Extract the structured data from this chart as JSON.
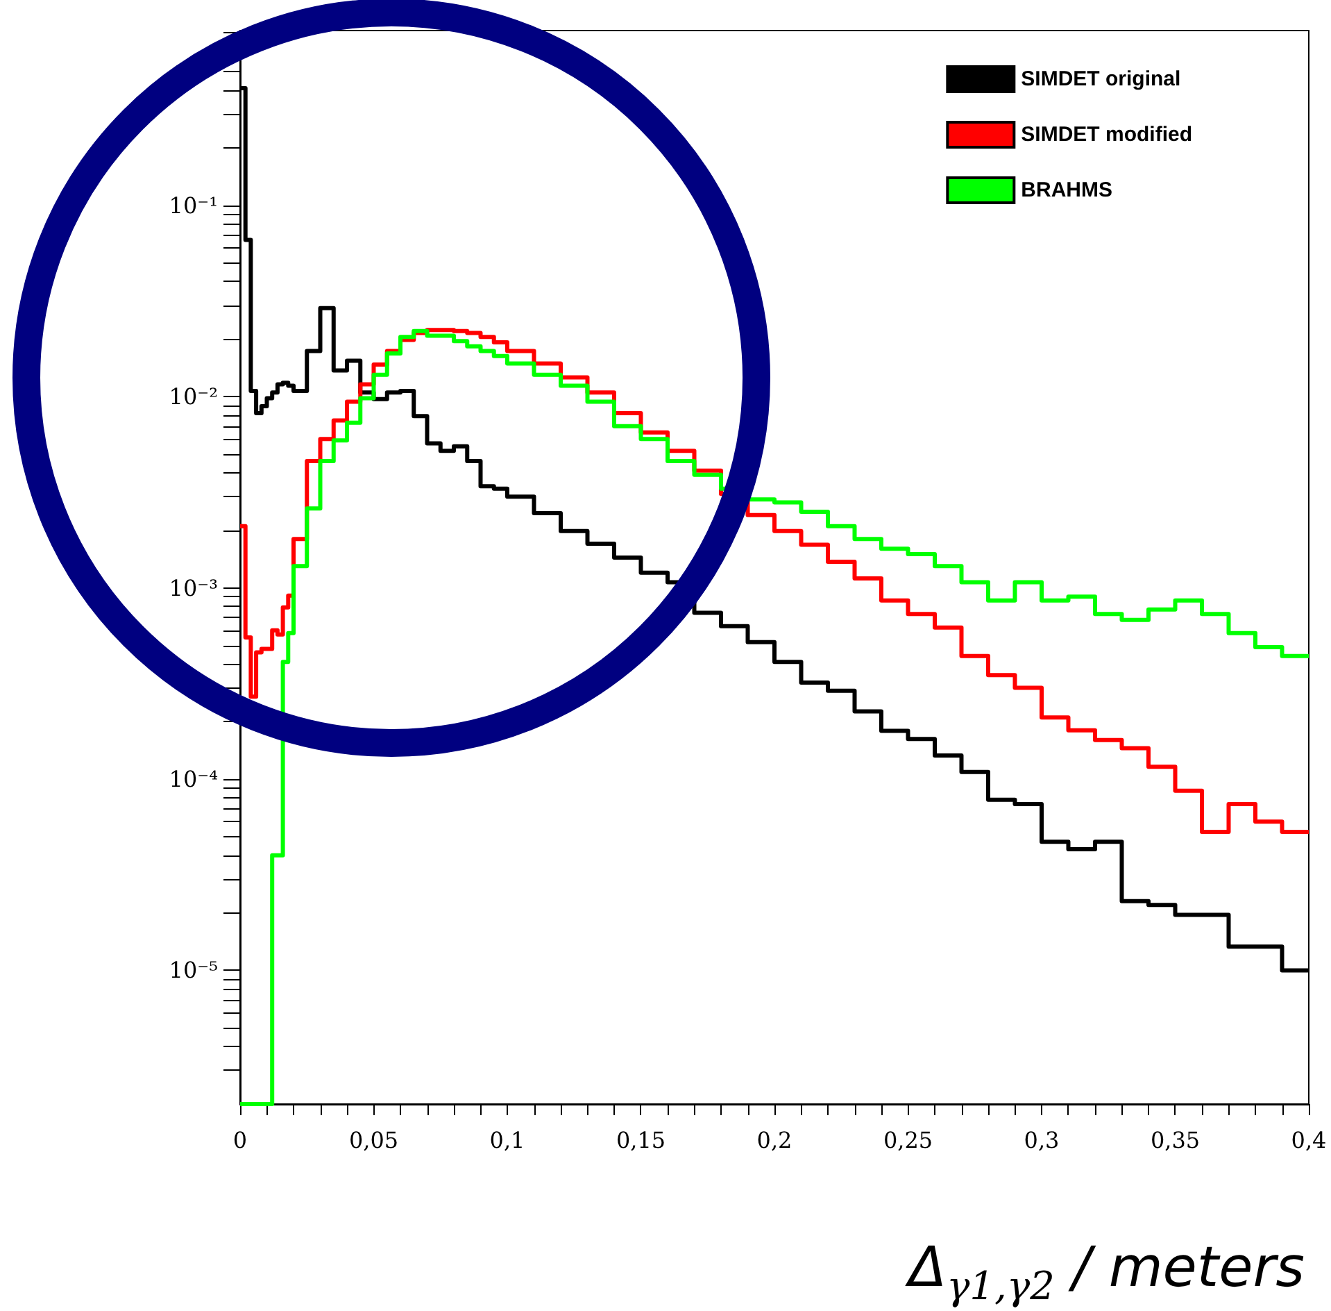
{
  "chart_data": {
    "type": "histogram",
    "xlabel": "Δ$_{γ1,γ2}$ / meters",
    "bins": [
      0,
      0.002,
      0.004,
      0.006,
      0.008,
      0.01,
      0.012,
      0.014,
      0.016,
      0.018,
      0.02,
      0.025,
      0.03,
      0.035,
      0.04,
      0.045,
      0.05,
      0.055,
      0.06,
      0.065,
      0.07,
      0.075,
      0.08,
      0.085,
      0.09,
      0.095,
      0.1,
      0.11,
      0.12,
      0.13,
      0.14,
      0.15,
      0.16,
      0.17,
      0.18,
      0.19,
      0.2,
      0.21,
      0.22,
      0.23,
      0.24,
      0.25,
      0.26,
      0.27,
      0.28,
      0.29,
      0.3,
      0.31,
      0.32,
      0.33,
      0.34,
      0.35,
      0.36,
      0.37,
      0.38,
      0.39,
      0.4
    ],
    "series": [
      {
        "name": "SIMDET original",
        "color": "#000000",
        "values": [
          0.41,
          0.066,
          0.0107,
          0.0082,
          0.0089,
          0.0098,
          0.0105,
          0.0116,
          0.0118,
          0.0114,
          0.0107,
          0.0173,
          0.029,
          0.0137,
          0.0154,
          0.0105,
          0.0097,
          0.0105,
          0.0107,
          0.0079,
          0.0057,
          0.0052,
          0.0055,
          0.0046,
          0.0034,
          0.0033,
          0.003,
          0.00246,
          0.00198,
          0.0017,
          0.00144,
          0.0012,
          0.00107,
          0.00074,
          0.00063,
          0.00052,
          0.00041,
          0.00032,
          0.00029,
          0.000226,
          0.000179,
          0.000162,
          0.000133,
          0.000109,
          7.8e-05,
          7.4e-05,
          4.7e-05,
          4.3e-05,
          4.7e-05,
          2.3e-05,
          2.2e-05,
          1.95e-05,
          1.95e-05,
          1.33e-05,
          1.33e-05,
          1e-05
        ]
      },
      {
        "name": "SIMDET modified",
        "color": "#ff0000",
        "values": [
          0.0021,
          0.00055,
          0.00027,
          0.00046,
          0.00048,
          0.00048,
          0.0006,
          0.00057,
          0.00079,
          0.00091,
          0.0018,
          0.0046,
          0.006,
          0.0075,
          0.0094,
          0.0116,
          0.0147,
          0.0173,
          0.0198,
          0.0215,
          0.0223,
          0.0223,
          0.022,
          0.0215,
          0.0205,
          0.0192,
          0.0173,
          0.0149,
          0.0126,
          0.0105,
          0.0082,
          0.0065,
          0.0052,
          0.0041,
          0.0031,
          0.0024,
          0.00198,
          0.00168,
          0.00137,
          0.00112,
          0.00086,
          0.00073,
          0.00062,
          0.00044,
          0.00035,
          0.0003,
          0.00021,
          0.00018,
          0.00016,
          0.000145,
          0.000116,
          8.7e-05,
          5.3e-05,
          7.4e-05,
          6e-05,
          5.3e-05
        ]
      },
      {
        "name": "BRAHMS",
        "color": "#00ff00",
        "values": [
          null,
          null,
          null,
          null,
          null,
          null,
          4e-05,
          4e-05,
          0.00041,
          0.00058,
          0.0013,
          0.0026,
          0.0046,
          0.0059,
          0.0073,
          0.0098,
          0.013,
          0.0168,
          0.0205,
          0.022,
          0.0208,
          0.0208,
          0.0195,
          0.0183,
          0.0173,
          0.0163,
          0.0149,
          0.013,
          0.0114,
          0.0094,
          0.007,
          0.006,
          0.0046,
          0.0039,
          0.0033,
          0.0029,
          0.0028,
          0.0025,
          0.0021,
          0.0018,
          0.0016,
          0.0015,
          0.0013,
          0.00107,
          0.00086,
          0.00107,
          0.00086,
          0.0009,
          0.00073,
          0.00068,
          0.00077,
          0.00086,
          0.00073,
          0.00058,
          0.00049,
          0.00044
        ]
      }
    ],
    "log": "y",
    "xlim": [
      0,
      0.4
    ],
    "xticks": [
      0,
      {
        "value": 0.01,
        "label": null
      },
      {
        "value": 0.02,
        "label": null
      },
      {
        "value": 0.03,
        "label": null
      },
      {
        "value": 0.04,
        "label": null
      },
      {
        "value": 0.05,
        "label": "0,05"
      },
      {
        "value": 0.06,
        "label": null
      },
      {
        "value": 0.07,
        "label": null
      },
      {
        "value": 0.08,
        "label": null
      },
      {
        "value": 0.09,
        "label": null
      },
      {
        "value": 0.1,
        "label": "0,1"
      },
      {
        "value": 0.11,
        "label": null
      },
      {
        "value": 0.12,
        "label": null
      },
      {
        "value": 0.13,
        "label": null
      },
      {
        "value": 0.14,
        "label": null
      },
      {
        "value": 0.15,
        "label": "0,15"
      },
      {
        "value": 0.16,
        "label": null
      },
      {
        "value": 0.17,
        "label": null
      },
      {
        "value": 0.18,
        "label": null
      },
      {
        "value": 0.19,
        "label": null
      },
      {
        "value": 0.2,
        "label": "0,2"
      },
      {
        "value": 0.21,
        "label": null
      },
      {
        "value": 0.22,
        "label": null
      },
      {
        "value": 0.23,
        "label": null
      },
      {
        "value": 0.24,
        "label": null
      },
      {
        "value": 0.25,
        "label": "0,25"
      },
      {
        "value": 0.26,
        "label": null
      },
      {
        "value": 0.27,
        "label": null
      },
      {
        "value": 0.28,
        "label": null
      },
      {
        "value": 0.29,
        "label": null
      },
      {
        "value": 0.3,
        "label": "0,3"
      },
      {
        "value": 0.31,
        "label": null
      },
      {
        "value": 0.32,
        "label": null
      },
      {
        "value": 0.33,
        "label": null
      },
      {
        "value": 0.34,
        "label": null
      },
      {
        "value": 0.35,
        "label": "0,35"
      },
      {
        "value": 0.36,
        "label": null
      },
      {
        "value": 0.37,
        "label": null
      },
      {
        "value": 0.38,
        "label": null
      },
      {
        "value": 0.39,
        "label": null
      },
      {
        "value": 0.4,
        "label": "0,4"
      }
    ],
    "ylim": [
      2e-06,
      0.82
    ],
    "yticks": [
      {
        "value": 3e-06,
        "label": null
      },
      {
        "value": 4e-06,
        "label": null
      },
      {
        "value": 5e-06,
        "label": null
      },
      {
        "value": 6e-06,
        "label": null
      },
      {
        "value": 7e-06,
        "label": null
      },
      {
        "value": 8e-06,
        "label": null
      },
      {
        "value": 9e-06,
        "label": null
      },
      {
        "value": 1e-05,
        "label": "10⁻⁵"
      },
      {
        "value": 2e-05,
        "label": null
      },
      {
        "value": 3e-05,
        "label": null
      },
      {
        "value": 4e-05,
        "label": null
      },
      {
        "value": 5e-05,
        "label": null
      },
      {
        "value": 6e-05,
        "label": null
      },
      {
        "value": 7e-05,
        "label": null
      },
      {
        "value": 8e-05,
        "label": null
      },
      {
        "value": 9e-05,
        "label": null
      },
      {
        "value": 0.0001,
        "label": "10⁻⁴"
      },
      {
        "value": 0.0002,
        "label": null
      },
      {
        "value": 0.0003,
        "label": null
      },
      {
        "value": 0.0004,
        "label": null
      },
      {
        "value": 0.0005,
        "label": null
      },
      {
        "value": 0.0006,
        "label": null
      },
      {
        "value": 0.0007,
        "label": null
      },
      {
        "value": 0.0008,
        "label": null
      },
      {
        "value": 0.0009,
        "label": null
      },
      {
        "value": 0.001,
        "label": "10⁻³"
      },
      {
        "value": 0.002,
        "label": null
      },
      {
        "value": 0.003,
        "label": null
      },
      {
        "value": 0.004,
        "label": null
      },
      {
        "value": 0.005,
        "label": null
      },
      {
        "value": 0.006,
        "label": null
      },
      {
        "value": 0.007,
        "label": null
      },
      {
        "value": 0.008,
        "label": null
      },
      {
        "value": 0.009,
        "label": null
      },
      {
        "value": 0.01,
        "label": "10⁻²"
      },
      {
        "value": 0.02,
        "label": null
      },
      {
        "value": 0.03,
        "label": null
      },
      {
        "value": 0.04,
        "label": null
      },
      {
        "value": 0.05,
        "label": null
      },
      {
        "value": 0.06,
        "label": null
      },
      {
        "value": 0.07,
        "label": null
      },
      {
        "value": 0.08,
        "label": null
      },
      {
        "value": 0.09,
        "label": null
      },
      {
        "value": 0.1,
        "label": "10⁻¹"
      },
      {
        "value": 0.2,
        "label": null
      },
      {
        "value": 0.3,
        "label": null
      },
      {
        "value": 0.4,
        "label": null
      },
      {
        "value": 0.5,
        "label": null
      },
      {
        "value": 0.6,
        "label": null
      },
      {
        "value": 0.7,
        "label": null
      },
      {
        "value": 0.8,
        "label": null
      }
    ],
    "legend": "top right"
  }
}
